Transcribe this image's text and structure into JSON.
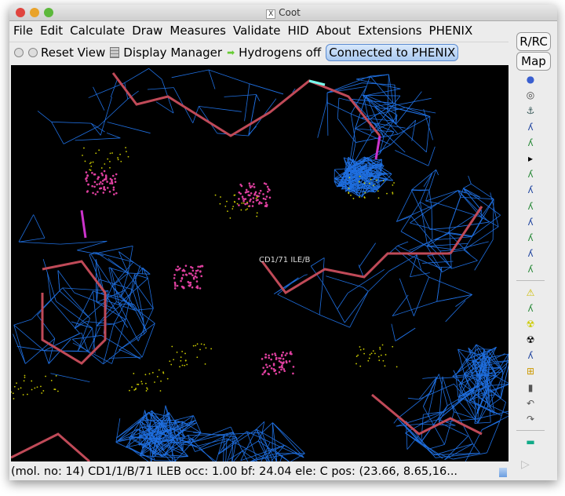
{
  "window": {
    "title": "Coot",
    "title_icon": "X"
  },
  "menu": [
    "File",
    "Edit",
    "Calculate",
    "Draw",
    "Measures",
    "Validate",
    "HID",
    "About",
    "Extensions",
    "PHENIX"
  ],
  "toolbar": {
    "reset_view": "Reset View",
    "display_manager": "Display Manager",
    "hydrogens": "Hydrogens off",
    "phenix": "Connected to PHENIX"
  },
  "right": {
    "rrc": "R/RC",
    "map": "Map",
    "icons": [
      "spin-view-icon",
      "centre-atom-icon",
      "rotate-translate-icon",
      "real-space-refine-icon",
      "regularize-icon",
      "arrow-right-icon",
      "rigid-body-fit-icon",
      "rotamer-icon",
      "edit-chi-icon",
      "torsion-icon",
      "flip-peptide-icon",
      "side-chain-180-icon",
      "edit-backbone-icon",
      "mutate-autofit-icon",
      "mutate-icon",
      "add-terminal-residue-icon",
      "add-atom-icon",
      "place-atom-icon",
      "clear-pending-icon",
      "delete-icon",
      "undo-icon",
      "redo-icon",
      "display-colour-icon"
    ],
    "forward": "▷"
  },
  "canvas": {
    "atom_label": "CD1/71 ILE/B",
    "mesh_color": "#1f6fe0",
    "stick_color": "#c04a58"
  },
  "status": "(mol. no: 14)  CD1/1/B/71 ILEB occ:  1.00 bf: 24.04 ele:  C pos: (23.66, 8.65,16..."
}
